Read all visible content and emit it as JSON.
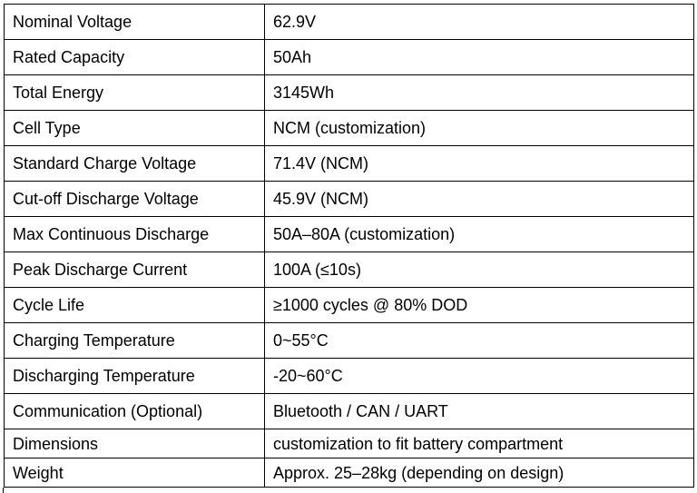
{
  "table": {
    "rows": [
      {
        "label": "Nominal Voltage",
        "value": "62.9V"
      },
      {
        "label": "Rated Capacity",
        "value": "50Ah"
      },
      {
        "label": "Total Energy",
        "value": "3145Wh"
      },
      {
        "label": "Cell Type",
        "value": "NCM (customization)"
      },
      {
        "label": "Standard Charge Voltage",
        "value": "71.4V (NCM)"
      },
      {
        "label": "Cut-off Discharge Voltage",
        "value": "45.9V (NCM)"
      },
      {
        "label": "Max Continuous Discharge",
        "value": "50A–80A (customization)"
      },
      {
        "label": "Peak Discharge Current",
        "value": "100A (≤10s)"
      },
      {
        "label": "Cycle Life",
        "value": "≥1000 cycles @ 80% DOD"
      },
      {
        "label": "Charging Temperature",
        "value": "0~55°C"
      },
      {
        "label": "Discharging Temperature",
        "value": "-20~60°C"
      },
      {
        "label": "Communication (Optional)",
        "value": "Bluetooth / CAN / UART"
      },
      {
        "label": "Dimensions",
        "value": "customization to fit battery compartment"
      },
      {
        "label": "Weight",
        "value": "Approx. 25–28kg (depending on design)"
      }
    ]
  }
}
